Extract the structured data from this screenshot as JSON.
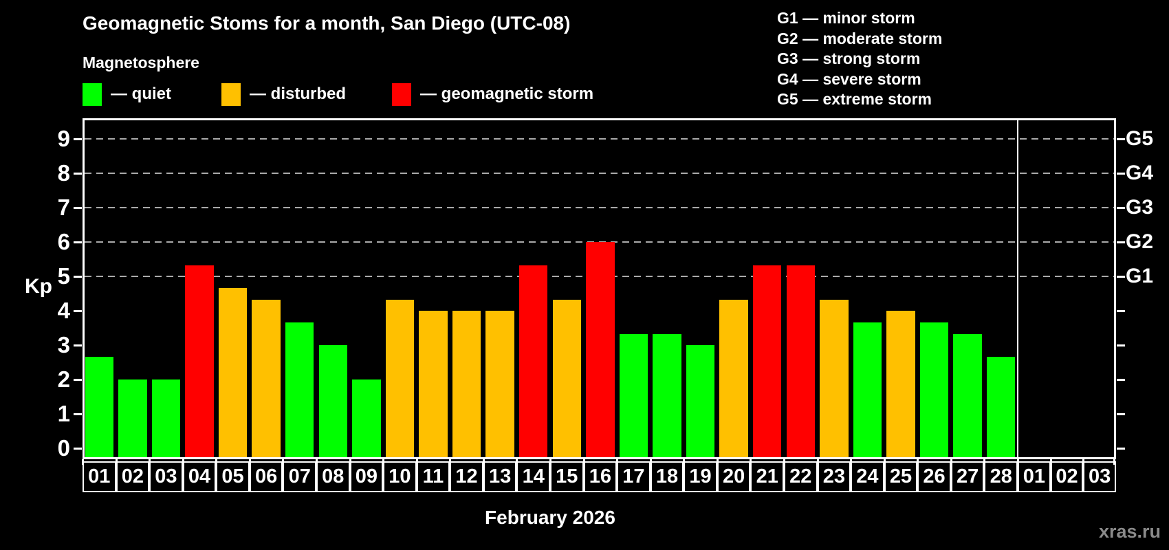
{
  "header": {
    "title": "Geomagnetic Stoms for a month, San Diego (UTC-08)"
  },
  "magnetosphere_legend": {
    "title": "Magnetosphere",
    "items": [
      {
        "key": "quiet",
        "label": "— quiet",
        "color": "#00ff00"
      },
      {
        "key": "disturbed",
        "label": "— disturbed",
        "color": "#ffc000"
      },
      {
        "key": "storm",
        "label": "— geomagnetic storm",
        "color": "#ff0000"
      }
    ]
  },
  "g_scale_legend": [
    "G1 — minor storm",
    "G2 — moderate storm",
    "G3 — strong storm",
    "G4 — severe storm",
    "G5 — extreme storm"
  ],
  "axes": {
    "left_label": "Kp",
    "left_ticks": [
      0,
      1,
      2,
      3,
      4,
      5,
      6,
      7,
      8,
      9
    ],
    "gridlines_kp": [
      5,
      6,
      7,
      8,
      9
    ],
    "right_labels": [
      {
        "kp": 5,
        "label": "G1"
      },
      {
        "kp": 6,
        "label": "G2"
      },
      {
        "kp": 7,
        "label": "G3"
      },
      {
        "kp": 8,
        "label": "G4"
      },
      {
        "kp": 9,
        "label": "G5"
      }
    ],
    "month_label": "February 2026"
  },
  "watermark": "xras.ru",
  "chart_data": {
    "type": "bar",
    "title": "Geomagnetic Stoms for a month, San Diego (UTC-08)",
    "xlabel": "February 2026",
    "ylabel": "Kp",
    "ylim": [
      0,
      9
    ],
    "grid": "dashed horizontal lines at Kp 5,6,7,8,9 (G1–G5)",
    "legend_position": "top",
    "condition_colors": {
      "quiet": "#00ff00",
      "disturbed": "#ffc000",
      "storm": "#ff0000"
    },
    "days": [
      {
        "day": "01",
        "kp": 2.67,
        "condition": "quiet"
      },
      {
        "day": "02",
        "kp": 2.0,
        "condition": "quiet"
      },
      {
        "day": "03",
        "kp": 2.0,
        "condition": "quiet"
      },
      {
        "day": "04",
        "kp": 5.33,
        "condition": "storm"
      },
      {
        "day": "05",
        "kp": 4.67,
        "condition": "disturbed"
      },
      {
        "day": "06",
        "kp": 4.33,
        "condition": "disturbed"
      },
      {
        "day": "07",
        "kp": 3.67,
        "condition": "quiet"
      },
      {
        "day": "08",
        "kp": 3.0,
        "condition": "quiet"
      },
      {
        "day": "09",
        "kp": 2.0,
        "condition": "quiet"
      },
      {
        "day": "10",
        "kp": 4.33,
        "condition": "disturbed"
      },
      {
        "day": "11",
        "kp": 4.0,
        "condition": "disturbed"
      },
      {
        "day": "12",
        "kp": 4.0,
        "condition": "disturbed"
      },
      {
        "day": "13",
        "kp": 4.0,
        "condition": "disturbed"
      },
      {
        "day": "14",
        "kp": 5.33,
        "condition": "storm"
      },
      {
        "day": "15",
        "kp": 4.33,
        "condition": "disturbed"
      },
      {
        "day": "16",
        "kp": 6.0,
        "condition": "storm"
      },
      {
        "day": "17",
        "kp": 3.33,
        "condition": "quiet"
      },
      {
        "day": "18",
        "kp": 3.33,
        "condition": "quiet"
      },
      {
        "day": "19",
        "kp": 3.0,
        "condition": "quiet"
      },
      {
        "day": "20",
        "kp": 4.33,
        "condition": "disturbed"
      },
      {
        "day": "21",
        "kp": 5.33,
        "condition": "storm"
      },
      {
        "day": "22",
        "kp": 5.33,
        "condition": "storm"
      },
      {
        "day": "23",
        "kp": 4.33,
        "condition": "disturbed"
      },
      {
        "day": "24",
        "kp": 3.67,
        "condition": "quiet"
      },
      {
        "day": "25",
        "kp": 4.0,
        "condition": "disturbed"
      },
      {
        "day": "26",
        "kp": 3.67,
        "condition": "quiet"
      },
      {
        "day": "27",
        "kp": 3.33,
        "condition": "quiet"
      },
      {
        "day": "28",
        "kp": 2.67,
        "condition": "quiet"
      },
      {
        "day": "01",
        "kp": null,
        "condition": null
      },
      {
        "day": "02",
        "kp": null,
        "condition": null
      },
      {
        "day": "03",
        "kp": null,
        "condition": null
      }
    ]
  }
}
